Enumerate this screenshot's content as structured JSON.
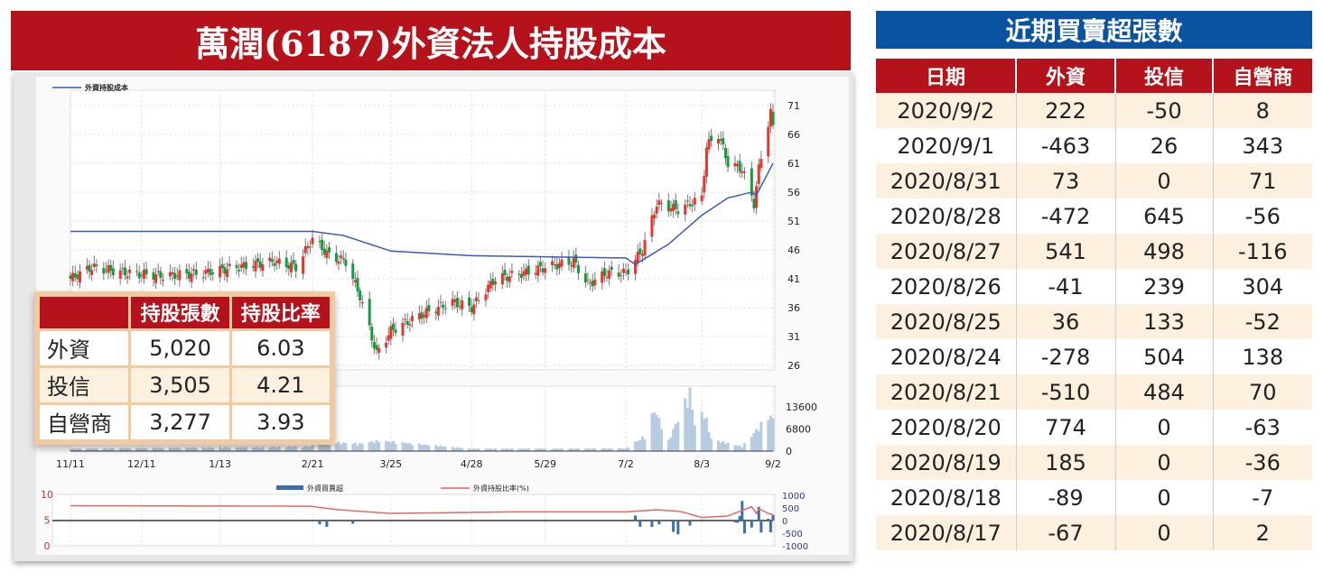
{
  "title": "萬潤(6187)外資法人持股成本",
  "holdings": {
    "headers": [
      "",
      "持股張數",
      "持股比率"
    ],
    "rows": [
      [
        "外資",
        "5,020",
        "6.03"
      ],
      [
        "投信",
        "3,505",
        "4.21"
      ],
      [
        "自營商",
        "3,277",
        "3.93"
      ]
    ]
  },
  "recent": {
    "title": "近期買賣超張數",
    "headers": [
      "日期",
      "外資",
      "投信",
      "自營商"
    ],
    "rows": [
      [
        "2020/9/2",
        "222",
        "-50",
        "8"
      ],
      [
        "2020/9/1",
        "-463",
        "26",
        "343"
      ],
      [
        "2020/8/31",
        "73",
        "0",
        "71"
      ],
      [
        "2020/8/28",
        "-472",
        "645",
        "-56"
      ],
      [
        "2020/8/27",
        "541",
        "498",
        "-116"
      ],
      [
        "2020/8/26",
        "-41",
        "239",
        "304"
      ],
      [
        "2020/8/25",
        "36",
        "133",
        "-52"
      ],
      [
        "2020/8/24",
        "-278",
        "504",
        "138"
      ],
      [
        "2020/8/21",
        "-510",
        "484",
        "70"
      ],
      [
        "2020/8/20",
        "774",
        "0",
        "-63"
      ],
      [
        "2020/8/19",
        "185",
        "0",
        "-36"
      ],
      [
        "2020/8/18",
        "-89",
        "0",
        "-7"
      ],
      [
        "2020/8/17",
        "-67",
        "0",
        "2"
      ]
    ]
  },
  "chart_data": [
    {
      "type": "candlestick",
      "legend": [
        "外資持股成本"
      ],
      "x_ticks": [
        "11/11",
        "12/11",
        "1/13",
        "2/21",
        "3/25",
        "4/28",
        "5/29",
        "7/2",
        "8/3",
        "9/2"
      ],
      "tick_dates": [
        "2019-11-11",
        "2019-12-11",
        "2020-01-13",
        "2020-02-21",
        "2020-03-25",
        "2020-04-28",
        "2020-05-29",
        "2020-07-02",
        "2020-08-03",
        "2020-09-02"
      ],
      "y_ticks": [
        71,
        66,
        61,
        56,
        51,
        46,
        41,
        36,
        31,
        26
      ],
      "ylim": [
        26,
        73
      ],
      "up_color": "#e8352b",
      "down_color": "#1a9a3c",
      "cost_color": "#3a5bb0",
      "price_close": [
        [
          "2019-11-11",
          41
        ],
        [
          "2019-11-20",
          43
        ],
        [
          "2019-12-05",
          42
        ],
        [
          "2019-12-20",
          41.5
        ],
        [
          "2020-01-06",
          42
        ],
        [
          "2020-01-20",
          43
        ],
        [
          "2020-02-05",
          44
        ],
        [
          "2020-02-14",
          43
        ],
        [
          "2020-02-21",
          48
        ],
        [
          "2020-02-28",
          45
        ],
        [
          "2020-03-06",
          44
        ],
        [
          "2020-03-12",
          38
        ],
        [
          "2020-03-19",
          28
        ],
        [
          "2020-03-25",
          32
        ],
        [
          "2020-04-08",
          35
        ],
        [
          "2020-04-20",
          37
        ],
        [
          "2020-04-28",
          36
        ],
        [
          "2020-05-08",
          41
        ],
        [
          "2020-05-20",
          42
        ],
        [
          "2020-05-29",
          43
        ],
        [
          "2020-06-10",
          44
        ],
        [
          "2020-06-16",
          40
        ],
        [
          "2020-06-24",
          42
        ],
        [
          "2020-07-02",
          42
        ],
        [
          "2020-07-09",
          46
        ],
        [
          "2020-07-15",
          54
        ],
        [
          "2020-07-24",
          53
        ],
        [
          "2020-08-03",
          55
        ],
        [
          "2020-08-05",
          64
        ],
        [
          "2020-08-10",
          66
        ],
        [
          "2020-08-14",
          61
        ],
        [
          "2020-08-20",
          60
        ],
        [
          "2020-08-25",
          54
        ],
        [
          "2020-08-27",
          60
        ],
        [
          "2020-08-31",
          68
        ],
        [
          "2020-09-01",
          70
        ],
        [
          "2020-09-02",
          67
        ]
      ],
      "cost_line": [
        [
          "2019-11-11",
          49.2
        ],
        [
          "2020-02-21",
          49.2
        ],
        [
          "2020-03-05",
          48.5
        ],
        [
          "2020-03-25",
          45.8
        ],
        [
          "2020-04-28",
          45
        ],
        [
          "2020-05-29",
          44.8
        ],
        [
          "2020-07-02",
          44.6
        ],
        [
          "2020-07-06",
          43.5
        ],
        [
          "2020-07-20",
          47
        ],
        [
          "2020-08-03",
          52
        ],
        [
          "2020-08-14",
          55
        ],
        [
          "2020-08-24",
          56
        ],
        [
          "2020-08-26",
          55.5
        ],
        [
          "2020-09-02",
          61
        ]
      ]
    },
    {
      "type": "bar",
      "y_ticks": [
        13600,
        6800,
        0
      ],
      "ylim": [
        0,
        20000
      ],
      "bar_color": "#b7cce0",
      "volume": [
        [
          "2019-11-11",
          800
        ],
        [
          "2020-02-20",
          1500
        ],
        [
          "2020-02-25",
          3000
        ],
        [
          "2020-03-12",
          2500
        ],
        [
          "2020-03-20",
          3500
        ],
        [
          "2020-04-28",
          800
        ],
        [
          "2020-07-02",
          900
        ],
        [
          "2020-07-10",
          5000
        ],
        [
          "2020-07-14",
          14000
        ],
        [
          "2020-07-20",
          3500
        ],
        [
          "2020-07-29",
          20000
        ],
        [
          "2020-07-31",
          9000
        ],
        [
          "2020-08-04",
          13500
        ],
        [
          "2020-08-07",
          4000
        ],
        [
          "2020-08-20",
          1500
        ],
        [
          "2020-08-27",
          8000
        ],
        [
          "2020-08-31",
          12000
        ],
        [
          "2020-09-02",
          11000
        ]
      ]
    },
    {
      "type": "bar+line",
      "legend": [
        "外資買賣超",
        "外資持股比率(%)"
      ],
      "left_ticks": [
        10,
        5,
        0
      ],
      "right_ticks": [
        1000,
        500,
        0,
        -500,
        -1000
      ],
      "left_ylim": [
        0,
        10
      ],
      "right_ylim": [
        -1000,
        1000
      ],
      "bar_color": "#3a6fa8",
      "line_color": "#e06a60",
      "ratio": [
        [
          "2019-11-11",
          7.8
        ],
        [
          "2020-02-20",
          7.7
        ],
        [
          "2020-03-03",
          7.0
        ],
        [
          "2020-03-25",
          6.3
        ],
        [
          "2020-05-15",
          6.6
        ],
        [
          "2020-07-02",
          6.6
        ],
        [
          "2020-07-15",
          7.0
        ],
        [
          "2020-07-25",
          6.7
        ],
        [
          "2020-08-03",
          5.5
        ],
        [
          "2020-08-14",
          5.8
        ],
        [
          "2020-08-24",
          7.6
        ],
        [
          "2020-08-26",
          6.3
        ],
        [
          "2020-08-27",
          7.2
        ],
        [
          "2020-08-31",
          6.3
        ],
        [
          "2020-09-02",
          6.03
        ]
      ],
      "net_buy": [
        [
          "2020-02-24",
          -150
        ],
        [
          "2020-02-27",
          -250
        ],
        [
          "2020-03-09",
          -120
        ],
        [
          "2020-07-06",
          200
        ],
        [
          "2020-07-08",
          -250
        ],
        [
          "2020-07-13",
          -250
        ],
        [
          "2020-07-16",
          -150
        ],
        [
          "2020-07-22",
          -450
        ],
        [
          "2020-07-24",
          -550
        ],
        [
          "2020-07-29",
          -200
        ],
        [
          "2020-08-17",
          -67
        ],
        [
          "2020-08-18",
          -89
        ],
        [
          "2020-08-19",
          185
        ],
        [
          "2020-08-20",
          774
        ],
        [
          "2020-08-21",
          -510
        ],
        [
          "2020-08-24",
          -278
        ],
        [
          "2020-08-25",
          36
        ],
        [
          "2020-08-26",
          -41
        ],
        [
          "2020-08-27",
          541
        ],
        [
          "2020-08-28",
          -472
        ],
        [
          "2020-08-31",
          73
        ],
        [
          "2020-09-01",
          -463
        ],
        [
          "2020-09-02",
          222
        ]
      ]
    }
  ]
}
